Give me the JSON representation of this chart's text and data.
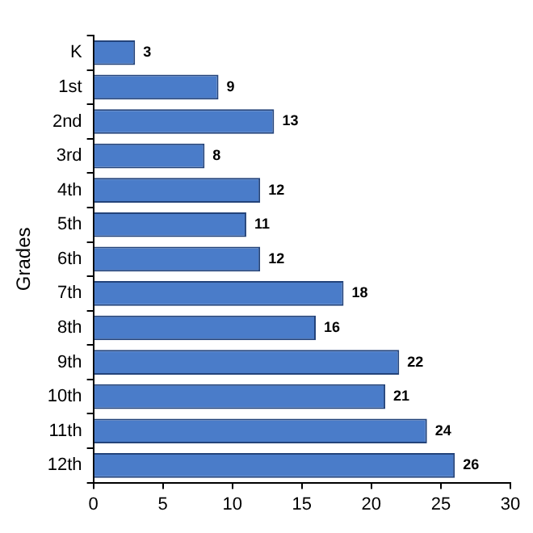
{
  "chart_data": {
    "type": "bar",
    "orientation": "horizontal",
    "ylabel": "Grades",
    "categories": [
      "K",
      "1st",
      "2nd",
      "3rd",
      "4th",
      "5th",
      "6th",
      "7th",
      "8th",
      "9th",
      "10th",
      "11th",
      "12th"
    ],
    "values": [
      3,
      9,
      13,
      8,
      12,
      11,
      12,
      18,
      16,
      22,
      21,
      24,
      26
    ],
    "color": "#4a7cc9",
    "xlim": [
      0,
      30
    ],
    "xticks": [
      0,
      5,
      10,
      15,
      20,
      25,
      30
    ],
    "grid": false,
    "legend": false,
    "data_labels": true
  }
}
